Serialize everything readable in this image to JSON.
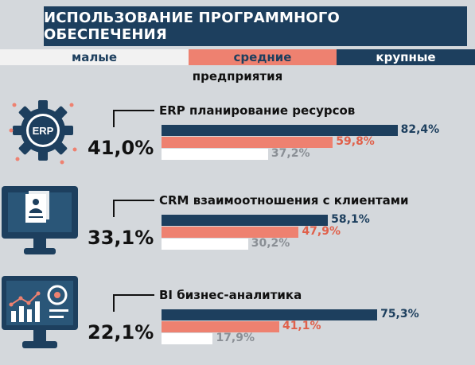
{
  "title": "ИСПОЛЬЗОВАНИЕ ПРОГРАММНОГО ОБЕСПЕЧЕНИЯ",
  "legend": {
    "small": "малые",
    "medium": "средние",
    "large": "крупные"
  },
  "subtitle": "предприятия",
  "colors": {
    "large": "#1d3f5e",
    "medium": "#ee8170",
    "small": "#ffffff",
    "background": "#d4d8dc"
  },
  "icons": [
    "erp-gear-icon",
    "crm-monitor-document-icon",
    "bi-monitor-analytics-icon"
  ],
  "icon_text": {
    "erp": "ERP"
  },
  "chart_data": {
    "type": "bar",
    "orientation": "horizontal",
    "xlim": [
      0,
      100
    ],
    "series_order": [
      "large",
      "medium",
      "small"
    ],
    "groups": [
      {
        "label": "ERP планирование ресурсов",
        "total": "41,0%",
        "values": {
          "large": 82.4,
          "medium": 59.8,
          "small": 37.2
        },
        "labels": {
          "large": "82,4%",
          "medium": "59,8%",
          "small": "37,2%"
        }
      },
      {
        "label": "CRM взаимоотношения с клиентами",
        "total": "33,1%",
        "values": {
          "large": 58.1,
          "medium": 47.9,
          "small": 30.2
        },
        "labels": {
          "large": "58,1%",
          "medium": "47,9%",
          "small": "30,2%"
        }
      },
      {
        "label": "BI бизнес-аналитика",
        "total": "22,1%",
        "values": {
          "large": 75.3,
          "medium": 41.1,
          "small": 17.9
        },
        "labels": {
          "large": "75,3%",
          "medium": "41,1%",
          "small": "17,9%"
        }
      }
    ]
  }
}
